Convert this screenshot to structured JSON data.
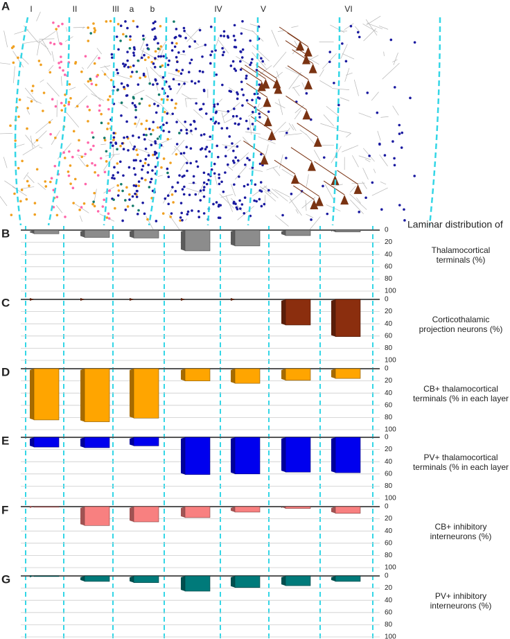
{
  "panel_a": {
    "label": "A",
    "layer_labels": [
      "I",
      "II",
      "III",
      "a",
      "b",
      "IV",
      "V",
      "VI"
    ]
  },
  "heading": "Laminar distribution of",
  "chart_data": [
    {
      "type": "bar",
      "panel": "B",
      "title_lines": [
        "Thalamocortical",
        "terminals (%)"
      ],
      "categories": [
        null,
        null,
        null,
        null,
        null,
        null,
        null
      ],
      "values": [
        6,
        12,
        13,
        34,
        26,
        9,
        3
      ],
      "color": "#8c8c8c",
      "ylim": [
        0,
        100
      ],
      "yticks": [
        0,
        20,
        40,
        60,
        80,
        100
      ],
      "inverted": true,
      "grid": true
    },
    {
      "type": "bar",
      "panel": "C",
      "title_lines": [
        "Corticothalamic",
        "projection neurons (%)"
      ],
      "categories": [
        null,
        null,
        null,
        null,
        null,
        null,
        null
      ],
      "values": [
        0,
        0,
        0,
        0,
        0,
        42,
        61
      ],
      "color": "#8b2e0e",
      "ylim": [
        0,
        100
      ],
      "yticks": [
        0,
        20,
        40,
        60,
        80,
        100
      ],
      "inverted": true,
      "grid": true
    },
    {
      "type": "bar",
      "panel": "D",
      "title_lines": [
        "CB+ thalamocortical",
        "terminals (% in each layer"
      ],
      "categories": [
        null,
        null,
        null,
        null,
        null,
        null,
        null
      ],
      "values": [
        84,
        87,
        81,
        20,
        24,
        19,
        16
      ],
      "color": "#ffa500",
      "ylim": [
        0,
        100
      ],
      "yticks": [
        0,
        20,
        40,
        60,
        80,
        100
      ],
      "inverted": true,
      "grid": true
    },
    {
      "type": "bar",
      "panel": "E",
      "title_lines": [
        "PV+ thalamocortical",
        "terminals (% in each layer"
      ],
      "categories": [
        null,
        null,
        null,
        null,
        null,
        null,
        null
      ],
      "values": [
        16,
        17,
        14,
        61,
        60,
        57,
        58
      ],
      "color": "#0000ee",
      "ylim": [
        0,
        100
      ],
      "yticks": [
        0,
        20,
        40,
        60,
        80,
        100
      ],
      "inverted": true,
      "grid": true
    },
    {
      "type": "bar",
      "panel": "F",
      "title_lines": [
        "CB+ inhibitory",
        "interneurons (%)"
      ],
      "categories": [
        null,
        null,
        null,
        null,
        null,
        null,
        null
      ],
      "values": [
        1,
        31,
        25,
        18,
        9,
        3,
        11
      ],
      "color": "#f88080",
      "ylim": [
        0,
        100
      ],
      "yticks": [
        0,
        20,
        40,
        60,
        80,
        100
      ],
      "inverted": true,
      "grid": true
    },
    {
      "type": "bar",
      "panel": "G",
      "title_lines": [
        "PV+ inhibitory",
        "interneurons (%)"
      ],
      "categories": [
        null,
        null,
        null,
        null,
        null,
        null,
        null
      ],
      "values": [
        1,
        9,
        11,
        25,
        19,
        16,
        9
      ],
      "color": "#007a7a",
      "ylim": [
        0,
        100
      ],
      "yticks": [
        0,
        20,
        40,
        60,
        80,
        100
      ],
      "inverted": true,
      "grid": true
    }
  ]
}
